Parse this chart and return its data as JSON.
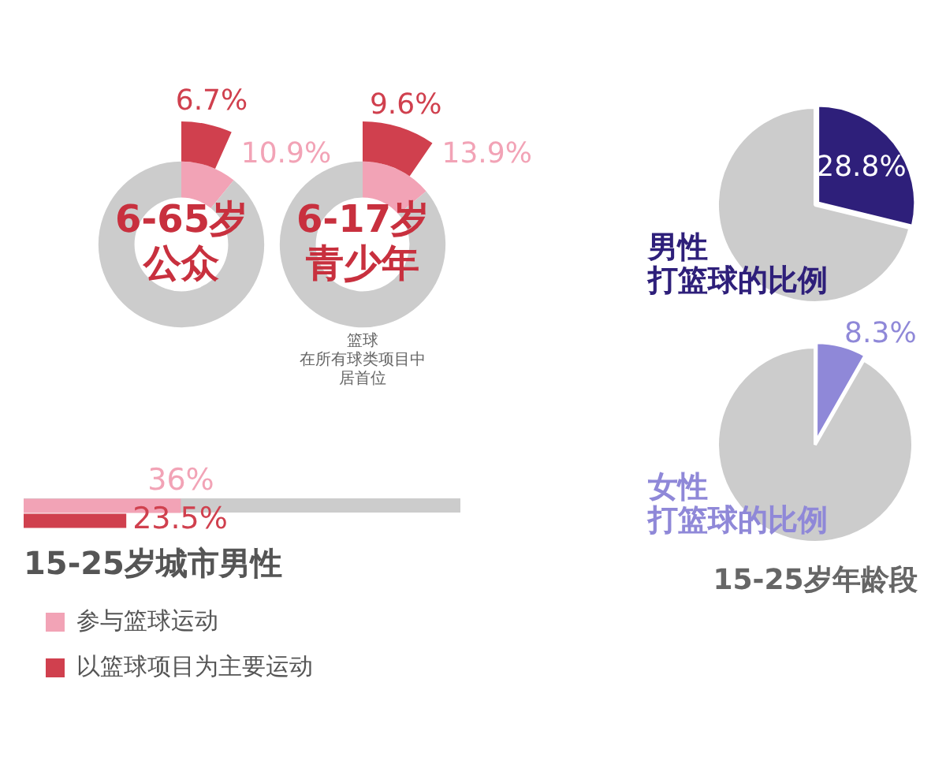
{
  "chart_data": [
    {
      "type": "donut",
      "title": "6-65岁",
      "subtitle": "公众",
      "categories": [
        null,
        null
      ],
      "series": [
        {
          "colors": [
            "#f2a3b6",
            "#cccccc"
          ],
          "values": [
            10.9,
            89.1
          ],
          "value_labels": [
            "10.9%",
            null
          ]
        },
        {
          "color": "#d0404e",
          "values": [
            6.7,
            null
          ],
          "value_labels": [
            "6.7%",
            null
          ]
        }
      ]
    },
    {
      "type": "donut",
      "title": "6-17岁",
      "subtitle": "青少年",
      "categories": [
        null,
        null
      ],
      "annotations": [
        "篮球",
        "在所有球类项目中",
        "居首位"
      ],
      "series": [
        {
          "colors": [
            "#f2a3b6",
            "#cccccc"
          ],
          "values": [
            13.9,
            86.1
          ],
          "value_labels": [
            "13.9%",
            null
          ]
        },
        {
          "color": "#d0404e",
          "values": [
            9.6,
            null
          ],
          "value_labels": [
            "9.6%",
            null
          ]
        }
      ]
    },
    {
      "type": "bar",
      "orientation": "horizontal",
      "xlabel": "15-25岁城市男性",
      "categories": [
        null
      ],
      "xlim": [
        0,
        100
      ],
      "tick_labels": false,
      "legend": "bottom",
      "series": [
        {
          "name": "参与篮球运动",
          "color": "#f2a3b6",
          "values": [
            36
          ],
          "value_labels": [
            "36%"
          ]
        },
        {
          "name": "以篮球项目为主要运动",
          "color": "#d0404e",
          "values": [
            23.5
          ],
          "value_labels": [
            "23.5%"
          ]
        }
      ]
    },
    {
      "type": "pie",
      "title": "男性",
      "subtitle": "打篮球的比例",
      "categories": [
        null,
        null
      ],
      "values": [
        28.8,
        71.2
      ],
      "colors": [
        "#2e1f7a",
        "#cccccc"
      ],
      "value_labels": [
        "28.8%",
        null
      ]
    },
    {
      "type": "pie",
      "title": "女性",
      "subtitle": "打篮球的比例",
      "categories": [
        null,
        null
      ],
      "values": [
        8.3,
        91.7
      ],
      "colors": [
        "#8f88d8",
        "#cccccc"
      ],
      "value_labels": [
        "8.3%",
        null
      ],
      "annotations": [
        "15-25岁年龄段"
      ]
    }
  ]
}
